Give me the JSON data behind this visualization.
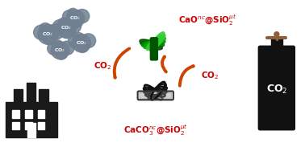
{
  "bg_color": "#ffffff",
  "arrow_color": "#CC4400",
  "co2_label_color": "#CC0000",
  "co2_cloud_color": "#708090",
  "factory_color": "#1a1a1a",
  "cylinder_color": "#111111",
  "figsize": [
    3.78,
    1.83
  ],
  "dpi": 100
}
